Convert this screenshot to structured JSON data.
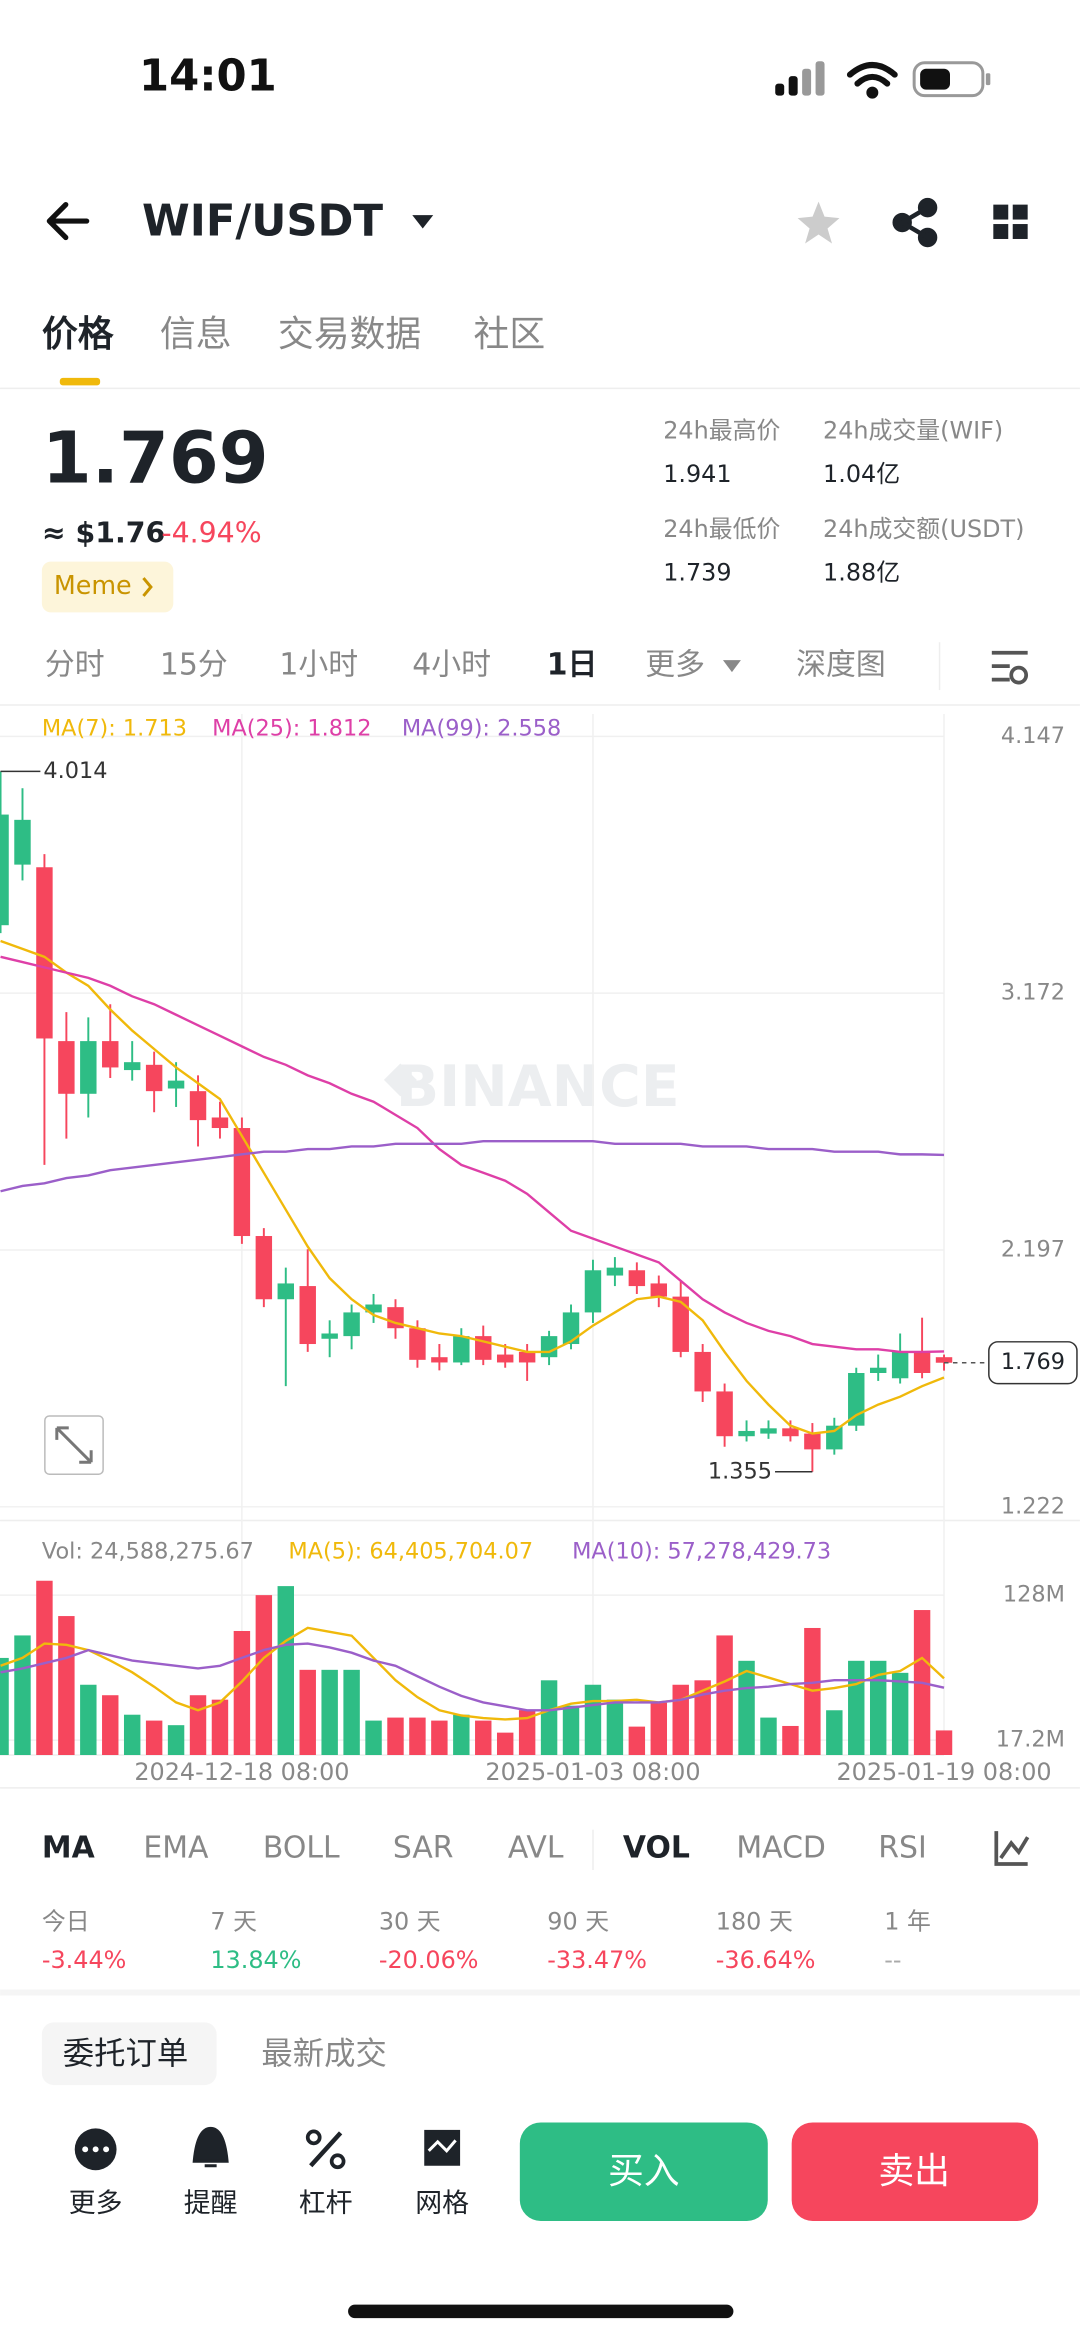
{
  "status_bar": {
    "time": "14:01"
  },
  "header": {
    "pair": "WIF/USDT"
  },
  "tabs": [
    "价格",
    "信息",
    "交易数据",
    "社区"
  ],
  "price": {
    "last": "1.769",
    "usd": "≈ $1.76",
    "change": "-4.94%",
    "tag": "Meme"
  },
  "stats": [
    {
      "label": "24h最高价",
      "value": "1.941"
    },
    {
      "label": "24h成交量(WIF)",
      "value": "1.04亿"
    },
    {
      "label": "24h最低价",
      "value": "1.739"
    },
    {
      "label": "24h成交额(USDT)",
      "value": "1.88亿"
    }
  ],
  "intervals": [
    "分时",
    "15分",
    "1小时",
    "4小时",
    "1日",
    "更多",
    "深度图"
  ],
  "watermark": "BINANCE",
  "chart_data": {
    "type": "candlestick",
    "categories": [
      null,
      null,
      null,
      null,
      null,
      null,
      null,
      null,
      null,
      null,
      null,
      "2024-12-18 08:00",
      null,
      null,
      null,
      null,
      null,
      null,
      null,
      null,
      null,
      null,
      null,
      null,
      null,
      null,
      null,
      "2025-01-03 08:00",
      null,
      null,
      null,
      null,
      null,
      null,
      null,
      null,
      null,
      null,
      null,
      null,
      null,
      null,
      null,
      "2025-01-19 08:00"
    ],
    "open": [
      3.43,
      3.66,
      3.65,
      2.99,
      2.79,
      2.99,
      2.88,
      2.9,
      2.81,
      2.8,
      2.7,
      2.66,
      2.25,
      2.01,
      2.06,
      1.86,
      1.87,
      1.96,
      1.98,
      1.9,
      1.79,
      1.77,
      1.87,
      1.8,
      1.81,
      1.79,
      1.84,
      1.96,
      2.1,
      2.12,
      2.07,
      2.02,
      1.81,
      1.66,
      1.49,
      1.5,
      1.52,
      1.5,
      1.44,
      1.53,
      1.73,
      1.71,
      1.81,
      1.79
    ],
    "high": [
      4.014,
      3.95,
      3.7,
      3.1,
      3.08,
      3.13,
      2.99,
      2.95,
      2.91,
      2.86,
      2.76,
      2.7,
      2.28,
      2.13,
      2.2,
      1.93,
      1.99,
      2.03,
      2.01,
      1.93,
      1.84,
      1.9,
      1.91,
      1.84,
      1.84,
      1.89,
      1.99,
      2.16,
      2.17,
      2.15,
      2.1,
      2.08,
      1.84,
      1.69,
      1.55,
      1.55,
      1.55,
      1.54,
      1.56,
      1.75,
      1.8,
      1.88,
      1.94,
      1.8
    ],
    "low": [
      3.4,
      3.6,
      2.52,
      2.62,
      2.7,
      2.85,
      2.84,
      2.72,
      2.74,
      2.59,
      2.62,
      2.22,
      1.98,
      1.68,
      1.81,
      1.79,
      1.82,
      1.92,
      1.86,
      1.75,
      1.74,
      1.76,
      1.76,
      1.75,
      1.7,
      1.76,
      1.82,
      1.92,
      2.06,
      2.03,
      1.98,
      1.79,
      1.62,
      1.45,
      1.47,
      1.48,
      1.47,
      1.355,
      1.42,
      1.51,
      1.7,
      1.69,
      1.71,
      1.739
    ],
    "close": [
      3.85,
      3.83,
      3.0,
      2.79,
      2.99,
      2.89,
      2.91,
      2.8,
      2.84,
      2.69,
      2.66,
      2.25,
      2.01,
      2.07,
      1.84,
      1.88,
      1.96,
      1.99,
      1.9,
      1.78,
      1.77,
      1.87,
      1.78,
      1.77,
      1.77,
      1.87,
      1.96,
      2.12,
      2.13,
      2.06,
      2.02,
      1.81,
      1.66,
      1.49,
      1.51,
      1.52,
      1.49,
      1.44,
      1.53,
      1.73,
      1.75,
      1.81,
      1.73,
      1.769
    ],
    "up_color": "#2ebd85",
    "down_color": "#f6465d",
    "ylim": [
      1.17,
      4.232
    ],
    "yticks": [
      4.147,
      3.172,
      2.197,
      1.222
    ],
    "legend": [
      "MA(7): 1.713",
      "MA(25): 1.812",
      "MA(99): 2.558"
    ],
    "ma_series": [
      {
        "color": "#f0b90b",
        "values": [
          3.37,
          3.34,
          3.31,
          3.25,
          3.2,
          3.11,
          3.03,
          2.96,
          2.89,
          2.83,
          2.77,
          2.63,
          2.49,
          2.35,
          2.21,
          2.09,
          2.01,
          1.95,
          1.92,
          1.9,
          1.88,
          1.87,
          1.85,
          1.83,
          1.81,
          1.81,
          1.85,
          1.91,
          1.96,
          2.01,
          2.02,
          2.0,
          1.93,
          1.81,
          1.7,
          1.61,
          1.53,
          1.5,
          1.51,
          1.57,
          1.61,
          1.64,
          1.68,
          1.713
        ]
      },
      {
        "color": "#de3fa7",
        "values": [
          3.31,
          3.29,
          3.27,
          3.25,
          3.23,
          3.2,
          3.16,
          3.13,
          3.09,
          3.05,
          3.01,
          2.97,
          2.93,
          2.9,
          2.86,
          2.83,
          2.79,
          2.76,
          2.71,
          2.66,
          2.58,
          2.52,
          2.49,
          2.46,
          2.41,
          2.34,
          2.27,
          2.24,
          2.21,
          2.18,
          2.15,
          2.08,
          2.01,
          1.96,
          1.92,
          1.89,
          1.87,
          1.84,
          1.83,
          1.82,
          1.82,
          1.81,
          1.81,
          1.812
        ]
      },
      {
        "color": "#9b5fc9",
        "values": [
          2.42,
          2.44,
          2.45,
          2.47,
          2.48,
          2.5,
          2.51,
          2.52,
          2.53,
          2.54,
          2.55,
          2.56,
          2.57,
          2.57,
          2.58,
          2.58,
          2.59,
          2.59,
          2.6,
          2.6,
          2.6,
          2.6,
          2.61,
          2.61,
          2.61,
          2.61,
          2.61,
          2.61,
          2.6,
          2.6,
          2.6,
          2.6,
          2.59,
          2.59,
          2.59,
          2.58,
          2.58,
          2.58,
          2.57,
          2.57,
          2.57,
          2.56,
          2.56,
          2.558
        ]
      }
    ],
    "volume": {
      "values": [
        80000000,
        97200000,
        139000000,
        112000000,
        59500000,
        51500000,
        36600000,
        32100000,
        28600000,
        51500000,
        48100000,
        100600000,
        128000000,
        134900000,
        70900000,
        70900000,
        70900000,
        32100000,
        34400000,
        34400000,
        32100000,
        36600000,
        32100000,
        22900000,
        40100000,
        62900000,
        43500000,
        59500000,
        48100000,
        27500000,
        45800000,
        59500000,
        62900000,
        97200000,
        77800000,
        34400000,
        28000000,
        102900000,
        40000000,
        77800000,
        77800000,
        68600000,
        116600000,
        24588275.67
      ],
      "ylim": [
        5800000,
        142800000
      ],
      "yticks": [
        {
          "value": 128000000,
          "label": "128M"
        },
        {
          "value": 17200000,
          "label": "17.2M"
        }
      ],
      "legend": [
        "Vol: 24,588,275.67",
        "MA(5): 64,405,704.07",
        "MA(10): 57,278,429.73"
      ],
      "ma_series": [
        {
          "color": "#f0b90b",
          "values": [
            74000000,
            80000000,
            91000000,
            90000000,
            86000000,
            78000000,
            69000000,
            58000000,
            46000000,
            40000000,
            46000000,
            62000000,
            80000000,
            93000000,
            103000000,
            100000000,
            97000000,
            80000000,
            63000000,
            50000000,
            40000000,
            36000000,
            34000000,
            33000000,
            34000000,
            40000000,
            45000000,
            47000000,
            47000000,
            48000000,
            46000000,
            48000000,
            55000000,
            62000000,
            70000000,
            65000000,
            60000000,
            55000000,
            57000000,
            60000000,
            67000000,
            70000000,
            80000000,
            64405704.07
          ]
        },
        {
          "color": "#9b5fc9",
          "values": [
            69000000,
            72000000,
            76000000,
            80000000,
            86000000,
            82000000,
            78000000,
            76000000,
            74000000,
            72000000,
            74000000,
            80000000,
            86000000,
            90000000,
            91000000,
            88000000,
            84000000,
            78000000,
            74000000,
            66000000,
            58000000,
            51000000,
            46000000,
            43000000,
            40000000,
            40000000,
            42000000,
            44000000,
            46000000,
            46000000,
            46000000,
            48000000,
            52000000,
            55000000,
            57000000,
            58000000,
            60000000,
            61000000,
            63000000,
            63000000,
            63000000,
            62000000,
            61000000,
            57278429.73
          ]
        }
      ]
    }
  },
  "indicators": [
    "MA",
    "EMA",
    "BOLL",
    "SAR",
    "AVL",
    "VOL",
    "MACD",
    "RSI"
  ],
  "performance": [
    {
      "label": "今日",
      "value": "-3.44%"
    },
    {
      "label": "7 天",
      "value": "13.84%"
    },
    {
      "label": "30 天",
      "value": "-20.06%"
    },
    {
      "label": "90 天",
      "value": "-33.47%"
    },
    {
      "label": "180 天",
      "value": "-36.64%"
    },
    {
      "label": "1 年",
      "value": "--"
    }
  ],
  "order_tabs": [
    "委托订单",
    "最新成交"
  ],
  "tools": [
    "更多",
    "提醒",
    "杠杆",
    "网格"
  ],
  "buttons": {
    "buy": "买入",
    "sell": "卖出"
  }
}
